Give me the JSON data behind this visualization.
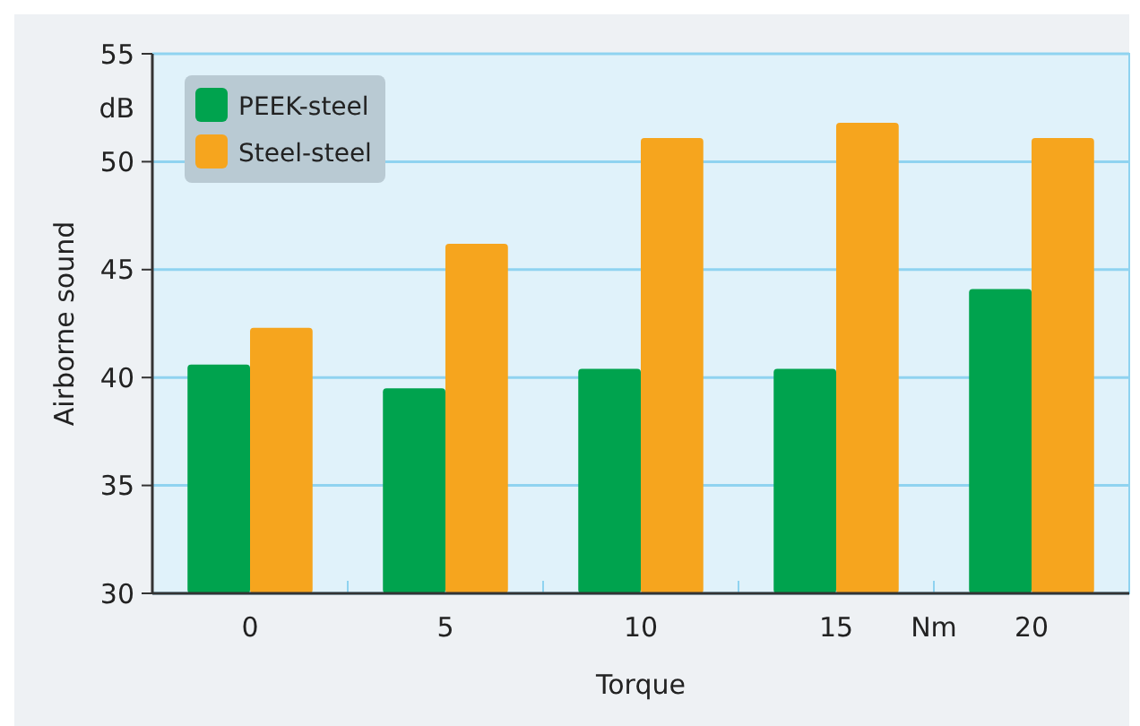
{
  "chart_data": {
    "type": "bar",
    "xlabel": "Torque",
    "ylabel": "Airborne sound",
    "annotations": [
      "dB",
      "Nm"
    ],
    "categories": [
      "0",
      "5",
      "10",
      "15",
      "20"
    ],
    "series": [
      {
        "name": "PEEK-steel",
        "color": "#00a34e",
        "values": [
          40.6,
          39.5,
          40.4,
          40.4,
          44.1
        ]
      },
      {
        "name": "Steel-steel",
        "color": "#f6a51e",
        "values": [
          42.3,
          46.2,
          51.1,
          51.8,
          51.1
        ]
      }
    ],
    "ylim": [
      30,
      55
    ],
    "yticks": [
      30,
      35,
      40,
      45,
      50,
      55
    ],
    "grid": "y",
    "legend": "top left"
  }
}
